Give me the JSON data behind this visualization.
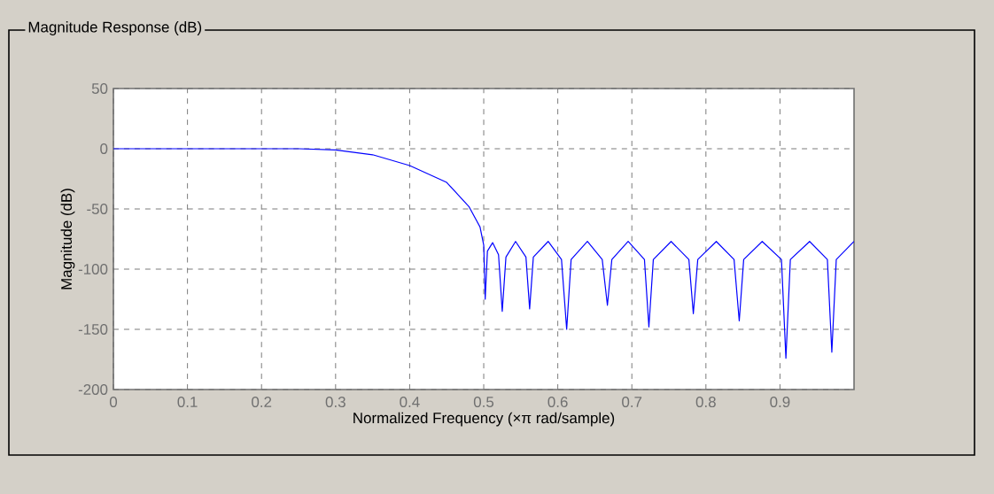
{
  "chart_data": {
    "type": "line",
    "title": "Magnitude Response (dB)",
    "xlabel": "Normalized Frequency (×π rad/sample)",
    "ylabel": "Magnitude (dB)",
    "x": [
      0,
      0.25,
      0.3,
      0.35,
      0.4,
      0.45,
      0.48,
      0.495,
      0.5,
      0.502,
      0.505,
      0.512,
      0.52,
      0.525,
      0.53,
      0.543,
      0.557,
      0.562,
      0.567,
      0.587,
      0.605,
      0.612,
      0.618,
      0.64,
      0.66,
      0.667,
      0.673,
      0.695,
      0.717,
      0.723,
      0.729,
      0.753,
      0.777,
      0.783,
      0.789,
      0.814,
      0.838,
      0.845,
      0.851,
      0.876,
      0.902,
      0.908,
      0.914,
      0.94,
      0.964,
      0.97,
      0.976,
      1.0
    ],
    "series": [
      {
        "color": "#0000ff",
        "values": [
          0,
          0,
          -1,
          -5,
          -14,
          -28,
          -48,
          -65,
          -80,
          -125,
          -85,
          -78,
          -88,
          -135,
          -90,
          -77,
          -90,
          -133,
          -90,
          -77,
          -92,
          -150,
          -92,
          -77,
          -92,
          -130,
          -92,
          -77,
          -92,
          -148,
          -92,
          -77,
          -92,
          -137,
          -92,
          -77,
          -92,
          -143,
          -92,
          -77,
          -92,
          -174,
          -92,
          -77,
          -92,
          -169,
          -92,
          -77
        ]
      }
    ],
    "xlim": [
      0,
      1
    ],
    "ylim": [
      -200,
      50
    ],
    "xticks": [
      0,
      0.1,
      0.2,
      0.3,
      0.4,
      0.5,
      0.6,
      0.7,
      0.8,
      0.9
    ],
    "yticks": [
      -200,
      -150,
      -100,
      -50,
      0,
      50
    ],
    "grid": true
  }
}
